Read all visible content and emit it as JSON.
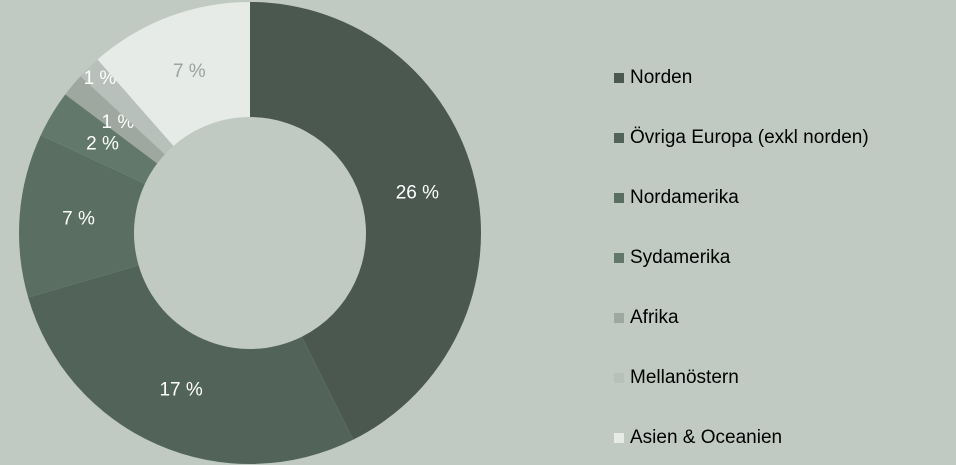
{
  "chart_data": {
    "type": "donut",
    "categories": [
      "Norden",
      "Övriga Europa (exkl norden)",
      "Nordamerika",
      "Sydamerika",
      "Afrika",
      "Mellanöstern",
      "Asien & Oceanien"
    ],
    "values": [
      26,
      17,
      7,
      2,
      1,
      1,
      7
    ],
    "value_labels": [
      "26 %",
      "17 %",
      "7 %",
      "2 %",
      "1 %",
      "1 %",
      "7 %"
    ],
    "colors": [
      "#4a5850",
      "#52635a",
      "#5a6e62",
      "#62786a",
      "#9ea8a1",
      "#b7c0ba",
      "#e6ebe8"
    ],
    "label_colors": [
      "#ffffff",
      "#ffffff",
      "#ffffff",
      "#ffffff",
      "#ffffff",
      "#ffffff",
      "#9aa49e"
    ],
    "legend": "right"
  }
}
